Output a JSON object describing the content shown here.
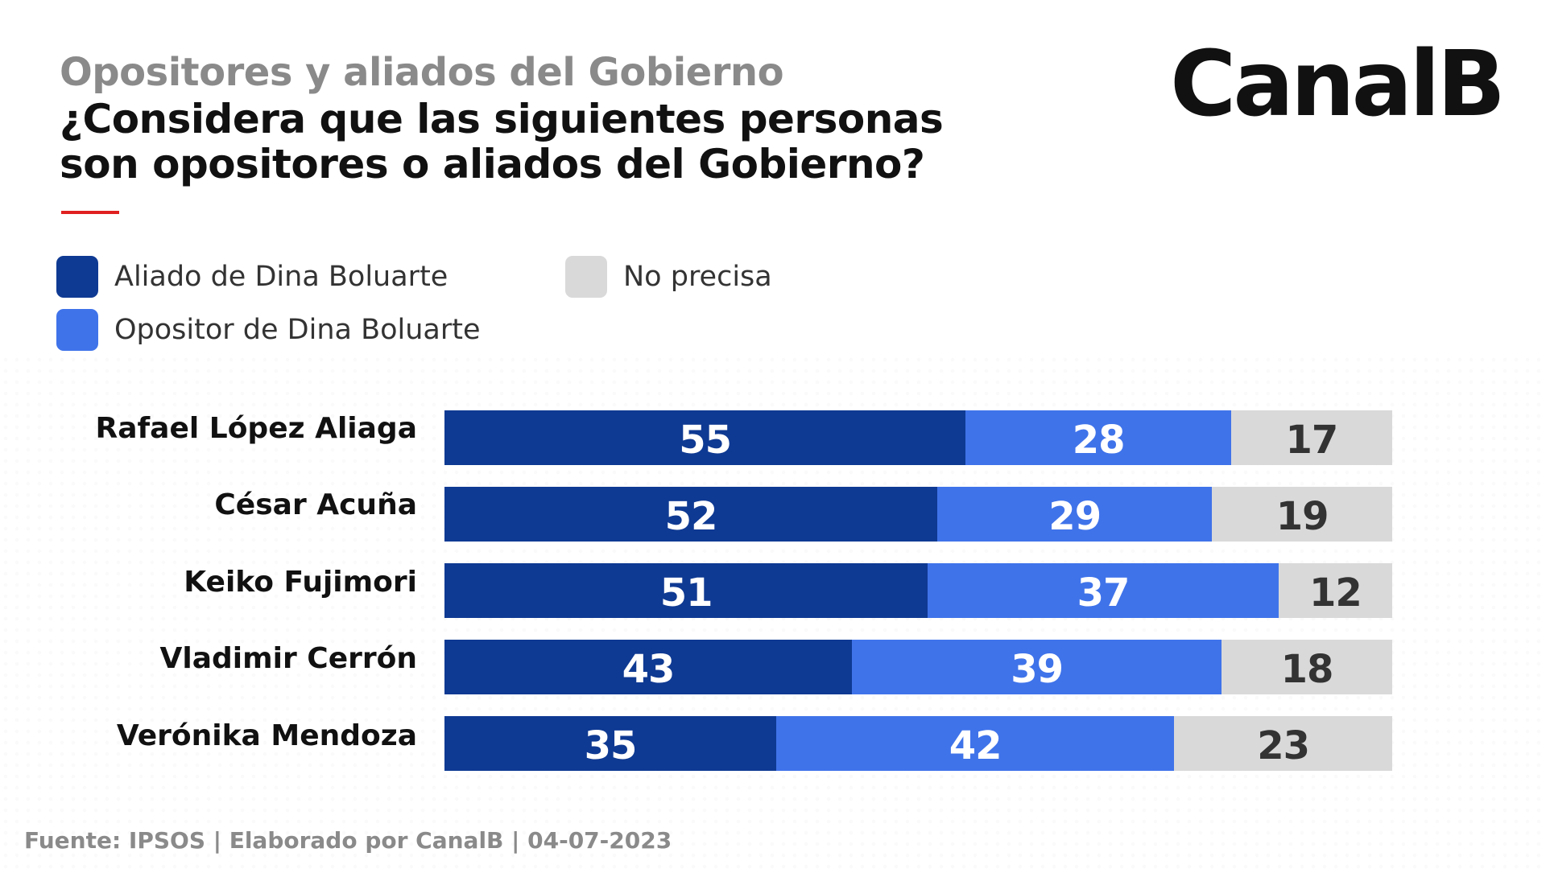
{
  "header": {
    "kicker": "Opositores y aliados del Gobierno",
    "question": "¿Considera que las siguientes personas son opositores o aliados del Gobierno?",
    "logo": "CanalB"
  },
  "colors": {
    "aliado": "#0f3a93",
    "opositor": "#3f73ea",
    "no_precisa": "#d9d9d9",
    "accent": "#e02020"
  },
  "legend": [
    {
      "label": "Aliado de Dina Boluarte",
      "color": "#0f3a93"
    },
    {
      "label": "No precisa",
      "color": "#d9d9d9"
    },
    {
      "label": "Opositor de Dina Boluarte",
      "color": "#3f73ea"
    }
  ],
  "chart_data": {
    "type": "bar",
    "orientation": "horizontal",
    "stacked": true,
    "categories": [
      "Rafael López Aliaga",
      "César Acuña",
      "Keiko Fujimori",
      "Vladimir Cerrón",
      "Verónika Mendoza"
    ],
    "series": [
      {
        "name": "Aliado de Dina Boluarte",
        "values": [
          55,
          52,
          51,
          43,
          35
        ],
        "color": "#0f3a93",
        "label_color": "#ffffff"
      },
      {
        "name": "Opositor de Dina Boluarte",
        "values": [
          28,
          29,
          37,
          39,
          42
        ],
        "color": "#3f73ea",
        "label_color": "#ffffff"
      },
      {
        "name": "No precisa",
        "values": [
          17,
          19,
          12,
          18,
          23
        ],
        "color": "#d9d9d9",
        "label_color": "#333333"
      }
    ],
    "data_labels": true,
    "grid": false
  },
  "footer": {
    "source": "Fuente: IPSOS | Elaborado por CanalB | 04-07-2023"
  }
}
